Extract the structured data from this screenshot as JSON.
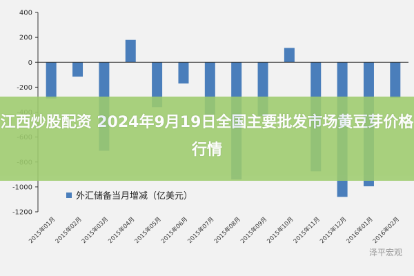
{
  "overlay": {
    "title": "江西炒股配资 2024年9月19日全国主要批发市场黄豆芽价格行情",
    "bg_color": "#9ecc6e"
  },
  "watermark": {
    "text": "泽平宏观"
  },
  "colors": {
    "bar": "#4a7ebb",
    "axis": "#333333"
  },
  "chart_data": {
    "type": "bar",
    "legend_placement": "bottom-left",
    "grid": false,
    "ylim": [
      -1200,
      400
    ],
    "yticks": [
      400,
      200,
      0,
      -200,
      -400,
      -600,
      -800,
      -1000,
      -1200
    ],
    "categories": [
      "2015年01月",
      "2015年02月",
      "2015年03月",
      "2015年04月",
      "2015年05月",
      "2015年06月",
      "2015年07月",
      "2015年08月",
      "2015年09月",
      "2015年10月",
      "2015年11月",
      "2015年12月",
      "2016年01月",
      "2016年02月"
    ],
    "series": [
      {
        "name": "外汇储备当月增减（亿美元）",
        "values": [
          -290,
          -115,
          -710,
          180,
          -360,
          -170,
          -420,
          -940,
          -430,
          115,
          -875,
          -1080,
          -995,
          -285
        ]
      }
    ]
  }
}
